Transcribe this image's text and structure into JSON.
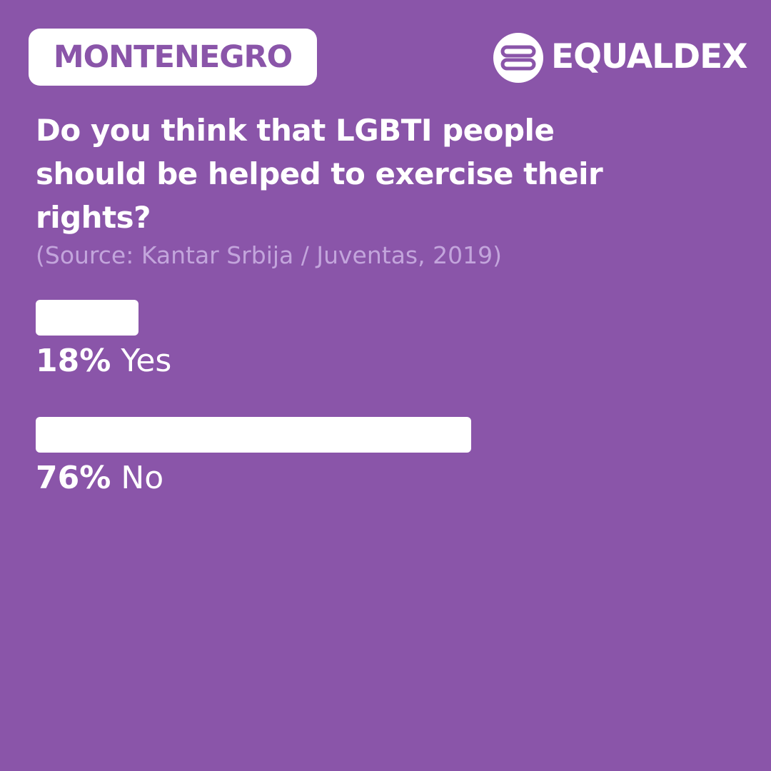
{
  "badge": "MONTENEGRO",
  "brand": "EQUALDEX",
  "chart_data": {
    "type": "bar",
    "title": "Do you think that LGBTI people should be helped to exercise their rights?",
    "subtitle": "(Source: Kantar Srbija / Juventas, 2019)",
    "categories": [
      "Yes",
      "No"
    ],
    "values": [
      18,
      76
    ],
    "value_labels": [
      "18%",
      "76%"
    ],
    "color": "#ffffff"
  }
}
